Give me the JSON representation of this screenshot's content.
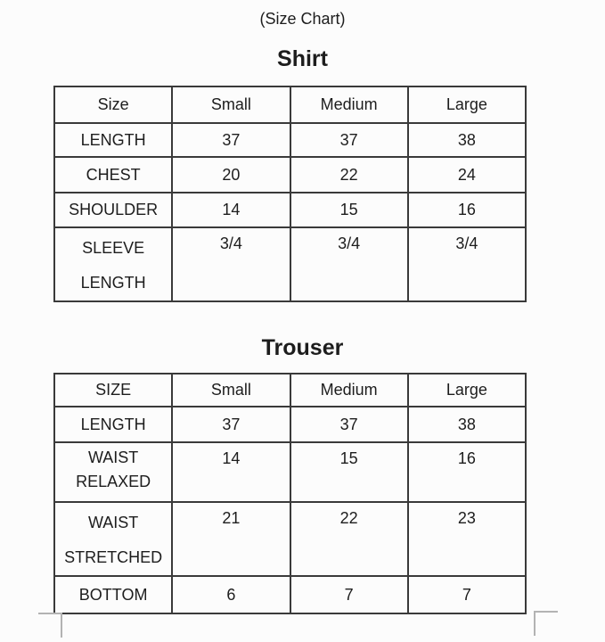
{
  "header": {
    "title": "(Size Chart)"
  },
  "shirt": {
    "heading": "Shirt",
    "columns": [
      "Size",
      "Small",
      "Medium",
      "Large"
    ],
    "rows": [
      {
        "label_lines": [
          "LENGTH"
        ],
        "values": [
          "37",
          "37",
          "38"
        ]
      },
      {
        "label_lines": [
          "CHEST"
        ],
        "values": [
          "20",
          "22",
          "24"
        ]
      },
      {
        "label_lines": [
          "SHOULDER"
        ],
        "values": [
          "14",
          "15",
          "16"
        ]
      },
      {
        "label_lines": [
          "SLEEVE",
          "LENGTH"
        ],
        "values": [
          "3/4",
          "3/4",
          "3/4"
        ]
      }
    ]
  },
  "trouser": {
    "heading": "Trouser",
    "columns": [
      "SIZE",
      "Small",
      "Medium",
      "Large"
    ],
    "rows": [
      {
        "label_lines": [
          "LENGTH"
        ],
        "values": [
          "37",
          "37",
          "38"
        ]
      },
      {
        "label_lines": [
          "WAIST",
          "RELAXED"
        ],
        "values": [
          "14",
          "15",
          "16"
        ]
      },
      {
        "label_lines": [
          "WAIST",
          "STRETCHED"
        ],
        "values": [
          "21",
          "22",
          "23"
        ]
      },
      {
        "label_lines": [
          "BOTTOM"
        ],
        "values": [
          "6",
          "7",
          "7"
        ]
      }
    ]
  },
  "colors": {
    "text": "#1d1d1d",
    "table_border": "#3a3a3a",
    "corner_mark": "#b3b3b3",
    "background": "#fcfcfc"
  }
}
